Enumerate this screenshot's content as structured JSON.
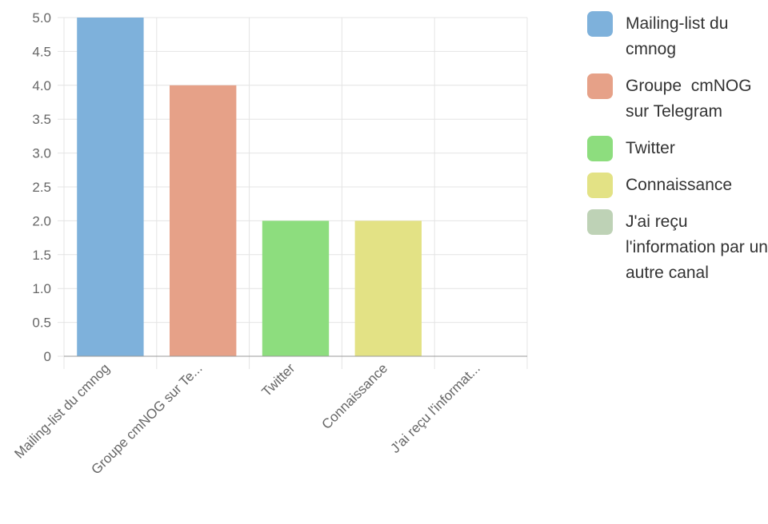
{
  "chart_data": {
    "type": "bar",
    "categories": [
      "Mailing-list du cmnog",
      "Groupe  cmNOG sur Te...",
      "Twitter",
      "Connaissance",
      "J'ai reçu l'informat..."
    ],
    "values": [
      5,
      4,
      2,
      2,
      0
    ],
    "colors": [
      "#7eb1db",
      "#e6a188",
      "#8ddd7e",
      "#e3e285",
      "#bed2b6"
    ],
    "ylim": [
      0,
      5
    ],
    "yticks": [
      "0",
      "0.5",
      "1.0",
      "1.5",
      "2.0",
      "2.5",
      "3.0",
      "3.5",
      "4.0",
      "4.5",
      "5.0"
    ],
    "grid": true,
    "legend_position": "right",
    "legend": [
      "Mailing-list du\ncmnog",
      "Groupe  cmNOG\nsur Telegram",
      "Twitter",
      "Connaissance",
      "J'ai reçu\nl'information par un\nautre canal"
    ]
  }
}
